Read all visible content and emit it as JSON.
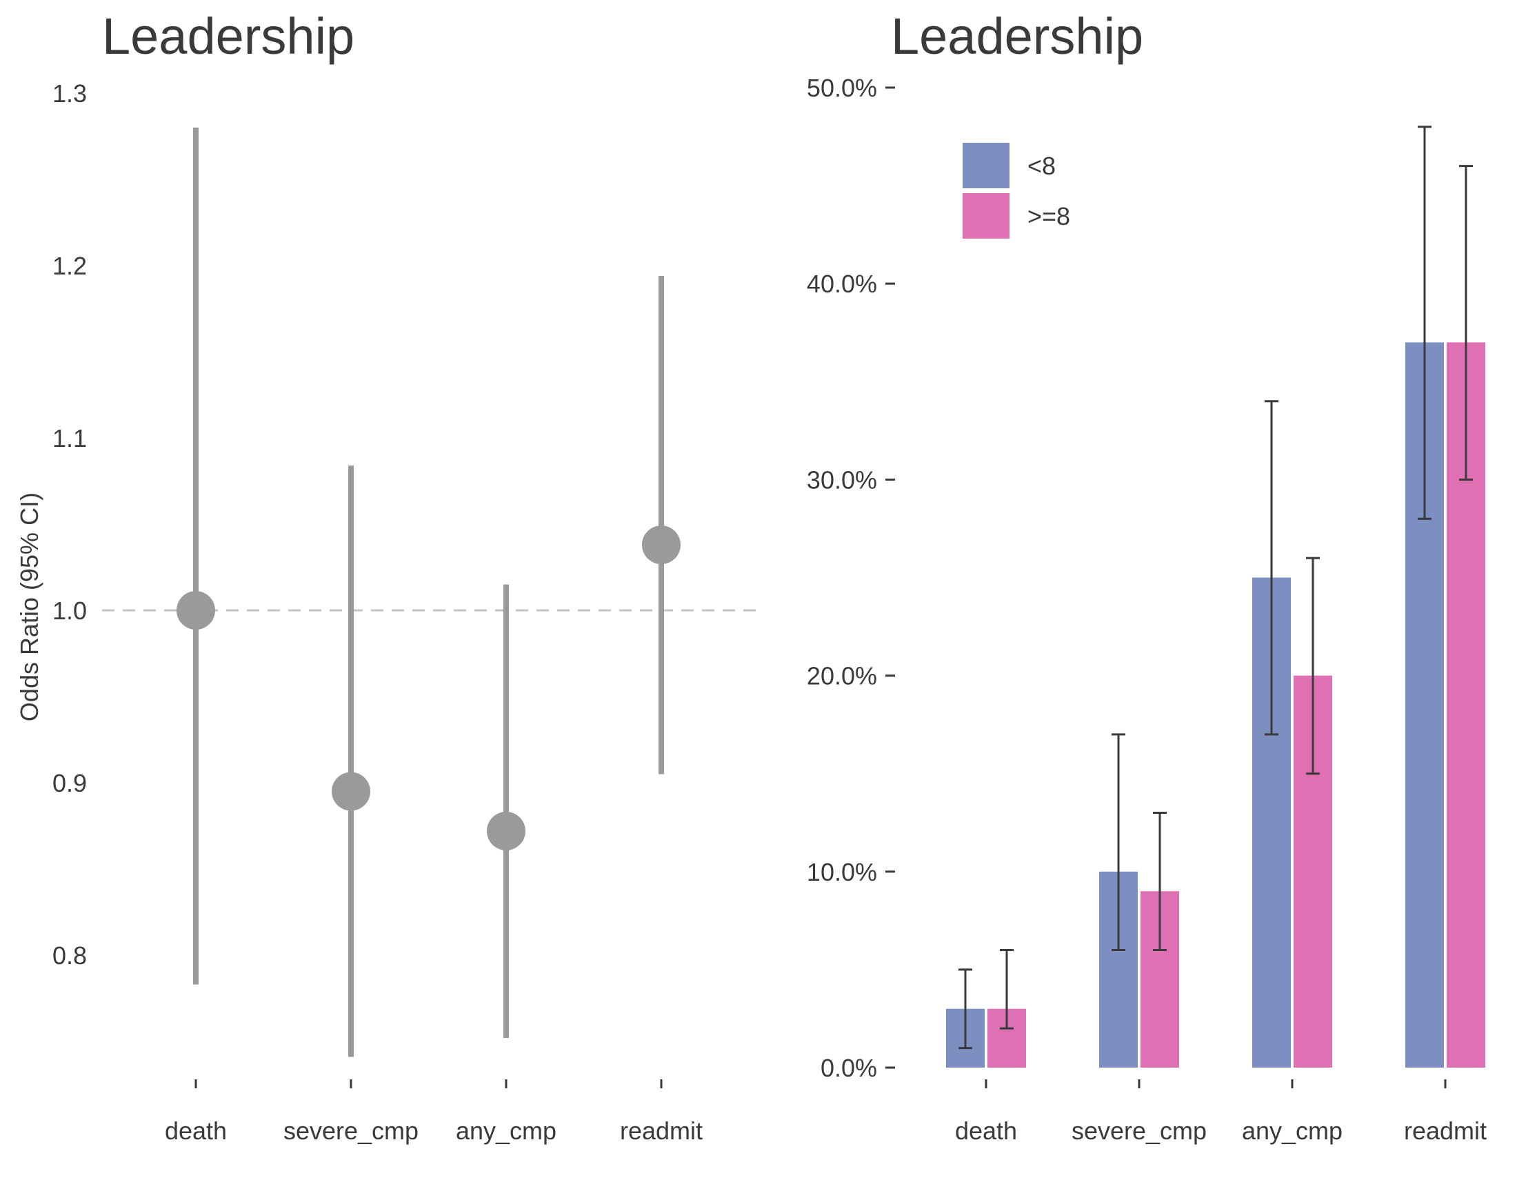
{
  "colors": {
    "point": "#9a9a9a",
    "refline": "#c4c4c4",
    "series_lt8": "#7d8fc1",
    "series_ge8": "#e070b4",
    "errorbar": "#3a3a3a",
    "text": "#3a3a3a"
  },
  "chart_data": [
    {
      "type": "scatter",
      "title": "Leadership",
      "ylabel": "Odds Ratio (95% CI)",
      "xlabel": "",
      "categories": [
        "death",
        "severe_cmp",
        "any_cmp",
        "readmit"
      ],
      "estimates": [
        1.0,
        0.895,
        0.872,
        1.038
      ],
      "ci_lower": [
        0.783,
        0.741,
        0.752,
        0.905
      ],
      "ci_upper": [
        1.28,
        1.084,
        1.015,
        1.194
      ],
      "reference_line": 1.0,
      "ylim": [
        0.72,
        1.3
      ],
      "yticks": [
        0.8,
        0.9,
        1.0,
        1.1,
        1.2,
        1.3
      ],
      "ytick_labels": [
        "0.8",
        "0.9",
        "1.0",
        "1.1",
        "1.2",
        "1.3"
      ],
      "grid": false
    },
    {
      "type": "bar",
      "title": "Leadership",
      "xlabel": "",
      "ylabel": "",
      "categories": [
        "death",
        "severe_cmp",
        "any_cmp",
        "readmit"
      ],
      "series": [
        {
          "name": "<8",
          "values": [
            0.03,
            0.1,
            0.25,
            0.37
          ],
          "err_lower": [
            0.01,
            0.06,
            0.17,
            0.28
          ],
          "err_upper": [
            0.05,
            0.17,
            0.34,
            0.48
          ]
        },
        {
          "name": ">=8",
          "values": [
            0.03,
            0.09,
            0.2,
            0.37
          ],
          "err_lower": [
            0.02,
            0.06,
            0.15,
            0.3
          ],
          "err_upper": [
            0.06,
            0.13,
            0.26,
            0.46
          ]
        }
      ],
      "ylim": [
        0,
        0.5
      ],
      "yticks": [
        0,
        0.1,
        0.2,
        0.3,
        0.4,
        0.5
      ],
      "ytick_labels": [
        "0.0%",
        "10.0%",
        "20.0%",
        "30.0%",
        "40.0%",
        "50.0%"
      ],
      "legend_position": "top-left",
      "grid": false
    }
  ]
}
